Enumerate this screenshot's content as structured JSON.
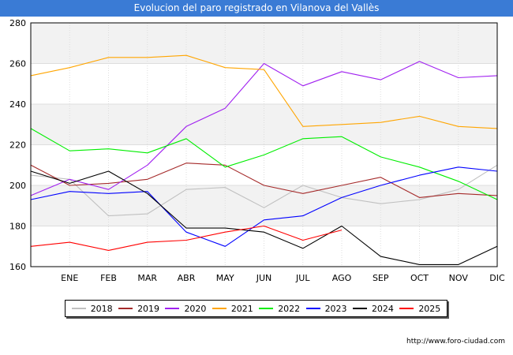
{
  "title": "Evolucion del paro registrado en Vilanova del Vallès",
  "source": "http://www.foro-ciudad.com",
  "chart_data": {
    "type": "line",
    "categories": [
      "",
      "ENE",
      "FEB",
      "MAR",
      "ABR",
      "MAY",
      "JUN",
      "JUL",
      "AGO",
      "SEP",
      "OCT",
      "NOV",
      "DIC"
    ],
    "ylim": [
      160,
      280
    ],
    "yticks": [
      160,
      180,
      200,
      220,
      240,
      260,
      280
    ],
    "grid": true,
    "legend_position": "bottom",
    "series": [
      {
        "name": "2018",
        "color": "#c0c0c0",
        "values": [
          205,
          203,
          185,
          186,
          198,
          199,
          189,
          200,
          194,
          191,
          193,
          198,
          210
        ]
      },
      {
        "name": "2019",
        "color": "#a52a2a",
        "values": [
          210,
          200,
          201,
          203,
          211,
          210,
          200,
          196,
          200,
          204,
          194,
          196,
          195
        ]
      },
      {
        "name": "2020",
        "color": "#a020f0",
        "values": [
          195,
          203,
          198,
          210,
          229,
          238,
          260,
          249,
          256,
          252,
          261,
          253,
          254
        ]
      },
      {
        "name": "2021",
        "color": "#ffa500",
        "values": [
          254,
          258,
          263,
          263,
          264,
          258,
          257,
          229,
          230,
          231,
          234,
          229,
          228
        ]
      },
      {
        "name": "2022",
        "color": "#00ee00",
        "values": [
          228,
          217,
          218,
          216,
          223,
          209,
          215,
          223,
          224,
          214,
          209,
          202,
          193
        ]
      },
      {
        "name": "2023",
        "color": "#0000ff",
        "values": [
          193,
          197,
          196,
          197,
          177,
          170,
          183,
          185,
          194,
          200,
          205,
          209,
          207
        ]
      },
      {
        "name": "2024",
        "color": "#000000",
        "values": [
          207,
          201,
          207,
          196,
          179,
          179,
          177,
          169,
          180,
          165,
          161,
          161,
          170
        ]
      },
      {
        "name": "2025",
        "color": "#ff0000",
        "values": [
          170,
          172,
          168,
          172,
          173,
          177,
          180,
          173,
          178,
          null,
          null,
          null,
          null
        ]
      }
    ]
  }
}
